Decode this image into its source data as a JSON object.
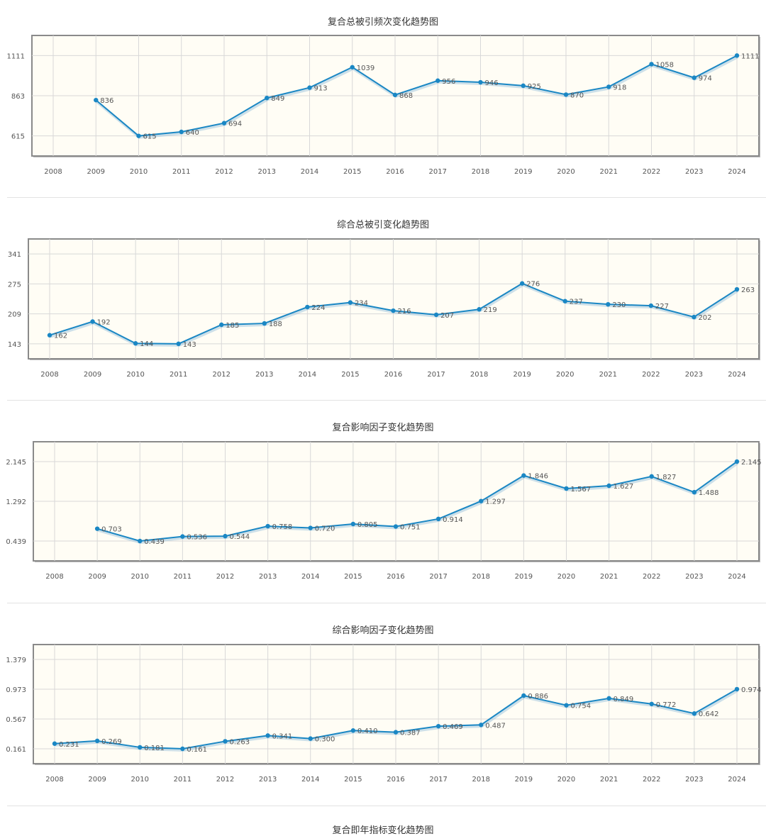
{
  "chart_data": [
    {
      "type": "line",
      "title": "复合总被引频次变化趋势图",
      "categories": [
        "2008",
        "2009",
        "2010",
        "2011",
        "2012",
        "2013",
        "2014",
        "2015",
        "2016",
        "2017",
        "2018",
        "2019",
        "2020",
        "2021",
        "2022",
        "2023",
        "2024"
      ],
      "values": [
        null,
        836,
        615,
        640,
        694,
        849,
        913,
        1039,
        868,
        956,
        946,
        925,
        870,
        918,
        1058,
        974,
        1111
      ],
      "labels": [
        "",
        "836",
        "615",
        "640",
        "694",
        "849",
        "913",
        "1039",
        "868",
        "956",
        "946",
        "925",
        "870",
        "918",
        "1058",
        "974",
        "1111"
      ],
      "yticks": [
        "615",
        "863",
        "1111"
      ],
      "ytick_values": [
        615,
        863,
        1111
      ],
      "ylim": [
        491,
        1235
      ],
      "grid": true
    },
    {
      "type": "line",
      "title": "综合总被引变化趋势图",
      "categories": [
        "2008",
        "2009",
        "2010",
        "2011",
        "2012",
        "2013",
        "2014",
        "2015",
        "2016",
        "2017",
        "2018",
        "2019",
        "2020",
        "2021",
        "2022",
        "2023",
        "2024"
      ],
      "values": [
        162,
        192,
        144,
        143,
        185,
        188,
        224,
        234,
        216,
        207,
        219,
        276,
        237,
        230,
        227,
        202,
        263
      ],
      "labels": [
        "162",
        "192",
        "144",
        "143",
        "185",
        "188",
        "224",
        "234",
        "216",
        "207",
        "219",
        "276",
        "237",
        "230",
        "227",
        "202",
        "263"
      ],
      "yticks": [
        "143",
        "209",
        "275",
        "341"
      ],
      "ytick_values": [
        143,
        209,
        275,
        341
      ],
      "ylim": [
        110,
        374
      ],
      "grid": true
    },
    {
      "type": "line",
      "title": "复合影响因子变化趋势图",
      "categories": [
        "2008",
        "2009",
        "2010",
        "2011",
        "2012",
        "2013",
        "2014",
        "2015",
        "2016",
        "2017",
        "2018",
        "2019",
        "2020",
        "2021",
        "2022",
        "2023",
        "2024"
      ],
      "values": [
        null,
        0.703,
        0.439,
        0.536,
        0.544,
        0.758,
        0.72,
        0.805,
        0.751,
        0.914,
        1.297,
        1.846,
        1.567,
        1.627,
        1.827,
        1.488,
        2.145
      ],
      "labels": [
        "",
        "0.703",
        "0.439",
        "0.536",
        "0.544",
        "0.758",
        "0.720",
        "0.805",
        "0.751",
        "0.914",
        "1.297",
        "1.846",
        "1.567",
        "1.627",
        "1.827",
        "1.488",
        "2.145"
      ],
      "yticks": [
        "0.439",
        "1.292",
        "2.145"
      ],
      "ytick_values": [
        0.439,
        1.292,
        2.145
      ],
      "ylim": [
        0.0125,
        2.5715
      ],
      "grid": true
    },
    {
      "type": "line",
      "title": "综合影响因子变化趋势图",
      "categories": [
        "2008",
        "2009",
        "2010",
        "2011",
        "2012",
        "2013",
        "2014",
        "2015",
        "2016",
        "2017",
        "2018",
        "2019",
        "2020",
        "2021",
        "2022",
        "2023",
        "2024"
      ],
      "values": [
        0.231,
        0.269,
        0.181,
        0.161,
        0.263,
        0.341,
        0.3,
        0.41,
        0.387,
        0.469,
        0.487,
        0.886,
        0.754,
        0.849,
        0.772,
        0.642,
        0.974
      ],
      "labels": [
        "0.231",
        "0.269",
        "0.181",
        "0.161",
        "0.263",
        "0.341",
        "0.300",
        "0.410",
        "0.387",
        "0.469",
        "0.487",
        "0.886",
        "0.754",
        "0.849",
        "0.772",
        "0.642",
        "0.974"
      ],
      "yticks": [
        "0.161",
        "0.567",
        "0.973",
        "1.379"
      ],
      "ytick_values": [
        0.161,
        0.567,
        0.973,
        1.379
      ],
      "ylim": [
        -0.042,
        1.582
      ],
      "grid": true
    }
  ],
  "next_chart_title": "复合即年指标变化趋势图",
  "colors": {
    "line": "#1a87c4",
    "plot_bg": "#fffdf5",
    "grid": "#d8d8d8",
    "frame": "#8a8a8a",
    "text": "#555555"
  }
}
